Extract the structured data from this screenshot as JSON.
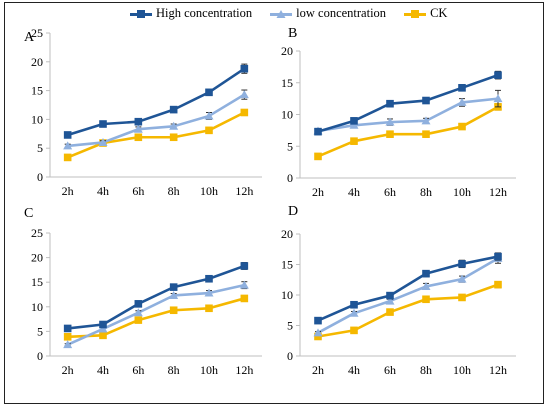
{
  "colors": {
    "high": "#1f5596",
    "low": "#8fb0de",
    "ck": "#f5b800"
  },
  "legend": [
    {
      "name": "High concentration",
      "color": "#1f5596",
      "marker": "square"
    },
    {
      "name": "low concentration",
      "color": "#8fb0de",
      "marker": "triangle"
    },
    {
      "name": "CK",
      "color": "#f5b800",
      "marker": "square"
    }
  ],
  "chart_data": [
    {
      "panel": "A",
      "type": "line",
      "x": [
        "2h",
        "4h",
        "6h",
        "8h",
        "10h",
        "12h"
      ],
      "ylim": [
        0,
        25
      ],
      "yticks": [
        0,
        5,
        10,
        15,
        20,
        25
      ],
      "grid": false,
      "series": [
        {
          "name": "High concentration",
          "values": [
            7.3,
            9.2,
            9.6,
            11.7,
            14.7,
            18.8
          ],
          "errors": [
            0.3,
            0.3,
            0.3,
            0.4,
            0.5,
            0.8
          ]
        },
        {
          "name": "low concentration",
          "values": [
            5.4,
            6.0,
            8.3,
            8.8,
            10.6,
            14.3
          ],
          "errors": [
            0.3,
            0.3,
            0.4,
            0.4,
            0.6,
            0.8
          ]
        },
        {
          "name": "CK",
          "values": [
            3.4,
            5.9,
            6.9,
            6.9,
            8.1,
            11.2
          ],
          "errors": [
            0.2,
            0.3,
            0.2,
            0.2,
            0.3,
            0.5
          ]
        }
      ]
    },
    {
      "panel": "B",
      "type": "line",
      "x": [
        "2h",
        "4h",
        "6h",
        "8h",
        "10h",
        "12h"
      ],
      "ylim": [
        0,
        20
      ],
      "yticks": [
        0,
        5,
        10,
        15,
        20
      ],
      "grid": false,
      "series": [
        {
          "name": "High concentration",
          "values": [
            7.3,
            9.0,
            11.7,
            12.2,
            14.2,
            16.2
          ],
          "errors": [
            0.3,
            0.3,
            0.4,
            0.4,
            0.5,
            0.6
          ]
        },
        {
          "name": "low concentration",
          "values": [
            7.4,
            8.3,
            8.8,
            9.0,
            11.9,
            12.5
          ],
          "errors": [
            0.4,
            0.4,
            0.5,
            0.4,
            0.6,
            1.3
          ]
        },
        {
          "name": "CK",
          "values": [
            3.4,
            5.8,
            6.9,
            6.9,
            8.1,
            11.2
          ],
          "errors": [
            0.2,
            0.3,
            0.2,
            0.2,
            0.3,
            0.5
          ]
        }
      ]
    },
    {
      "panel": "C",
      "type": "line",
      "x": [
        "2h",
        "4h",
        "6h",
        "8h",
        "10h",
        "12h"
      ],
      "ylim": [
        0,
        25
      ],
      "yticks": [
        0,
        5,
        10,
        15,
        20,
        25
      ],
      "grid": false,
      "series": [
        {
          "name": "High concentration",
          "values": [
            5.6,
            6.4,
            10.6,
            14.0,
            15.7,
            18.3
          ],
          "errors": [
            0.2,
            0.3,
            0.4,
            0.5,
            0.5,
            0.7
          ]
        },
        {
          "name": "low concentration",
          "values": [
            2.3,
            5.5,
            8.8,
            12.3,
            12.8,
            14.4
          ],
          "errors": [
            0.2,
            0.3,
            0.4,
            0.4,
            0.5,
            0.7
          ]
        },
        {
          "name": "CK",
          "values": [
            3.9,
            4.2,
            7.3,
            9.3,
            9.7,
            11.7
          ],
          "errors": [
            0.2,
            0.2,
            0.3,
            0.3,
            0.3,
            0.5
          ]
        }
      ]
    },
    {
      "panel": "D",
      "type": "line",
      "x": [
        "2h",
        "4h",
        "6h",
        "8h",
        "10h",
        "12h"
      ],
      "ylim": [
        0,
        20
      ],
      "yticks": [
        0,
        5,
        10,
        15,
        20
      ],
      "grid": false,
      "series": [
        {
          "name": "High concentration",
          "values": [
            5.8,
            8.4,
            9.9,
            13.5,
            15.1,
            16.3
          ],
          "errors": [
            0.3,
            0.3,
            0.4,
            0.5,
            0.6,
            0.6
          ]
        },
        {
          "name": "low concentration",
          "values": [
            3.8,
            7.0,
            9.0,
            11.4,
            12.6,
            16.0
          ],
          "errors": [
            0.2,
            0.3,
            0.3,
            0.5,
            0.5,
            0.8
          ]
        },
        {
          "name": "CK",
          "values": [
            3.2,
            4.2,
            7.2,
            9.3,
            9.6,
            11.7
          ],
          "errors": [
            0.2,
            0.2,
            0.3,
            0.3,
            0.4,
            0.5
          ]
        }
      ]
    }
  ]
}
